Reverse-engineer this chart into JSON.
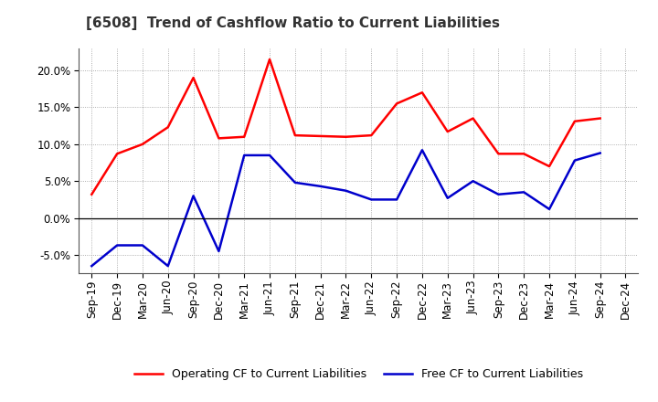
{
  "title": "[6508]  Trend of Cashflow Ratio to Current Liabilities",
  "x_labels": [
    "Sep-19",
    "Dec-19",
    "Mar-20",
    "Jun-20",
    "Sep-20",
    "Dec-20",
    "Mar-21",
    "Jun-21",
    "Sep-21",
    "Dec-21",
    "Mar-22",
    "Jun-22",
    "Sep-22",
    "Dec-22",
    "Mar-23",
    "Jun-23",
    "Sep-23",
    "Dec-23",
    "Mar-24",
    "Jun-24",
    "Sep-24",
    "Dec-24"
  ],
  "operating_cf": [
    3.2,
    8.7,
    10.0,
    12.3,
    19.0,
    10.8,
    11.0,
    21.5,
    11.2,
    11.1,
    11.0,
    11.2,
    15.5,
    17.0,
    11.7,
    13.5,
    8.7,
    8.7,
    7.0,
    13.1,
    13.5,
    null
  ],
  "free_cf": [
    -6.5,
    -3.7,
    -3.7,
    -6.5,
    3.0,
    -4.5,
    8.5,
    8.5,
    4.8,
    4.3,
    3.7,
    2.5,
    2.5,
    9.2,
    2.7,
    5.0,
    3.2,
    3.5,
    1.2,
    7.8,
    8.8,
    null
  ],
  "operating_color": "#ff0000",
  "free_color": "#0000cc",
  "ylim": [
    -7.5,
    23.0
  ],
  "yticks": [
    -5.0,
    0.0,
    5.0,
    10.0,
    15.0,
    20.0
  ],
  "legend_op": "Operating CF to Current Liabilities",
  "legend_free": "Free CF to Current Liabilities",
  "background_color": "#ffffff",
  "grid_color": "#aaaaaa",
  "title_fontsize": 11,
  "tick_fontsize": 8.5
}
